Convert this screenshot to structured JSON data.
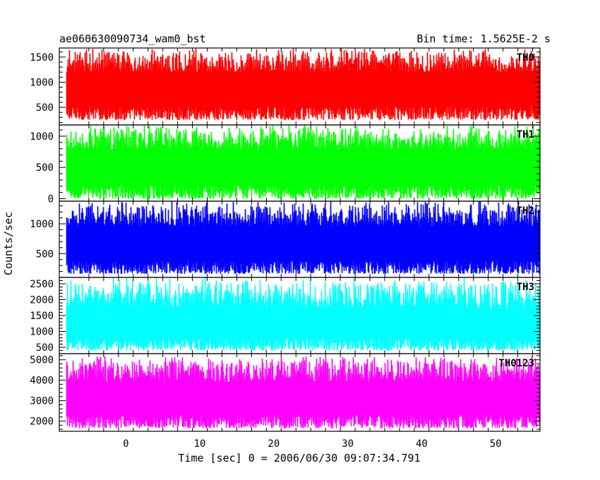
{
  "chart_data": {
    "type": "line",
    "title": "ae060630090734_wam0_bst",
    "subtitle": "Bin time: 1.5625E-2 s",
    "xlabel": "Time [sec] 0 = 2006/06/30 09:07:34.791",
    "ylabel": "Counts/sec",
    "xlim": [
      -9,
      56
    ],
    "data_x_range": [
      -8,
      56
    ],
    "bin_time": 0.015625,
    "x_ticks": [
      0,
      10,
      20,
      30,
      40,
      50
    ],
    "grid": false,
    "panels": [
      {
        "name": "TH0",
        "color": "#ff0000",
        "ylim": [
          150,
          1680
        ],
        "y_ticks": [
          500,
          1000,
          1500
        ],
        "range_min": [
          250,
          520
        ],
        "range_max": [
          1200,
          1680
        ]
      },
      {
        "name": "TH1",
        "color": "#00ff00",
        "ylim": [
          -40,
          1180
        ],
        "y_ticks": [
          0,
          500,
          1000
        ],
        "range_min": [
          0,
          220
        ],
        "range_max": [
          780,
          1180
        ]
      },
      {
        "name": "TH2",
        "color": "#0000ff",
        "ylim": [
          100,
          1380
        ],
        "y_ticks": [
          500,
          1000
        ],
        "range_min": [
          160,
          380
        ],
        "range_max": [
          960,
          1380
        ]
      },
      {
        "name": "TH3",
        "color": "#00ffff",
        "ylim": [
          300,
          2700
        ],
        "y_ticks": [
          500,
          1000,
          1500,
          2000,
          2500
        ],
        "range_min": [
          400,
          800
        ],
        "range_max": [
          1700,
          2700
        ]
      },
      {
        "name": "TH0123",
        "color": "#ff00ff",
        "ylim": [
          1500,
          5300
        ],
        "y_ticks": [
          2000,
          3000,
          4000,
          5000
        ],
        "range_min": [
          1650,
          2350
        ],
        "range_max": [
          3900,
          5200
        ]
      }
    ]
  }
}
